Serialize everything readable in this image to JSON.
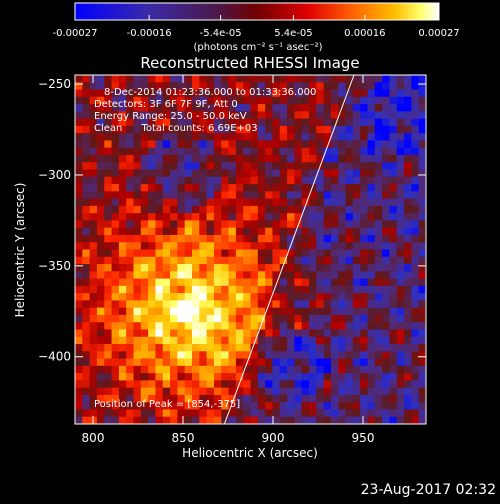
{
  "colorbar": {
    "tick_labels": [
      "-0.00027",
      "-0.00016",
      "-5.4e-05",
      "5.4e-05",
      "0.00016",
      "0.00027"
    ],
    "tick_values": [
      -0.00027,
      -0.00016,
      -5.4e-05,
      5.4e-05,
      0.00016,
      0.00027
    ],
    "range": [
      -0.00027,
      0.00027
    ],
    "units_label": "(photons cm⁻² s⁻¹ asec⁻²)"
  },
  "footer": {
    "timestamp": "23-Aug-2017 02:32"
  },
  "chart_data": {
    "type": "heatmap",
    "title": "Reconstructed RHESSI Image",
    "xlabel": "Heliocentric X (arcsec)",
    "ylabel": "Heliocentric Y (arcsec)",
    "xlim": [
      790,
      985
    ],
    "ylim": [
      -437,
      -245
    ],
    "x_ticks": [
      800,
      850,
      900,
      950
    ],
    "x_tick_labels": [
      "800",
      "850",
      "900",
      "950"
    ],
    "y_ticks": [
      -250,
      -300,
      -350,
      -400
    ],
    "y_tick_labels": [
      "−250",
      "−300",
      "−350",
      "−400"
    ],
    "annotations": {
      "time_range": "8-Dec-2014 01:23:36.000 to 01:33:36.000",
      "detectors": "Detectors: 3F 6F 7F 9F, Att 0",
      "energy": "Energy Range: 25.0 - 50.0 keV",
      "method": "Clean      Total counts: 6.69E+03",
      "peak": "Position of Peak = [854,-375]"
    },
    "peak": {
      "x": 854,
      "y": -375
    },
    "limb_line": {
      "x": [
        873,
        945
      ],
      "y": [
        -437,
        -245
      ]
    },
    "colormap": [
      "#0000ff",
      "#3030c0",
      "#502a7a",
      "#601818",
      "#b00000",
      "#ff2800",
      "#ff8000",
      "#ffc000",
      "#ffff60",
      "#ffffff"
    ],
    "pixel_grid": {
      "nx": 48,
      "ny": 48
    }
  }
}
